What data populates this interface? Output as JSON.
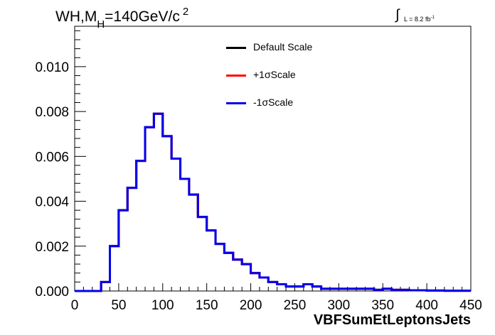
{
  "title": {
    "main": "WH,M",
    "sub": "H",
    "rest": "=140GeV/c",
    "sup": "2"
  },
  "lumi": {
    "integral": "∫",
    "text": "L = 8.2 fb",
    "sup": "-1"
  },
  "chart_data": {
    "type": "line",
    "xlabel": "VBFSumEtLeptonsJets",
    "ylabel": "",
    "xlim": [
      0,
      450
    ],
    "ylim": [
      0,
      0.0118
    ],
    "x_ticks": [
      "0",
      "50",
      "100",
      "150",
      "200",
      "250",
      "300",
      "350",
      "400",
      "450"
    ],
    "y_ticks": [
      "0.000",
      "0.002",
      "0.004",
      "0.006",
      "0.008",
      "0.010"
    ],
    "y_tick_values": [
      0,
      0.002,
      0.004,
      0.006,
      0.008,
      0.01
    ],
    "grid": false,
    "legend_position": "top-center",
    "bin_width": 10,
    "bin_edges_start": 0,
    "series": [
      {
        "name": "Default Scale",
        "color": "#000000",
        "values": [
          0,
          0,
          0,
          0.0004,
          0.002,
          0.0036,
          0.0046,
          0.0058,
          0.0073,
          0.0079,
          0.0069,
          0.0059,
          0.005,
          0.0043,
          0.0033,
          0.0027,
          0.0021,
          0.0017,
          0.0014,
          0.0012,
          0.0008,
          0.0006,
          0.0004,
          0.0003,
          0.0002,
          0.0002,
          0.0003,
          0.0002,
          0.0001,
          0.0001,
          0.0001,
          0.0001,
          0.0001,
          0.0001,
          5e-05,
          0.0001,
          5e-05,
          5e-05,
          3e-05,
          3e-05,
          2e-05,
          2e-05,
          1e-05,
          1e-05,
          1e-05
        ]
      },
      {
        "name": "+1σScale",
        "color": "#ff0000",
        "values": [
          0,
          0,
          0,
          0.0004,
          0.002,
          0.0036,
          0.0046,
          0.0058,
          0.0073,
          0.0079,
          0.0069,
          0.0059,
          0.005,
          0.0043,
          0.0033,
          0.0027,
          0.0021,
          0.0017,
          0.0014,
          0.0012,
          0.0008,
          0.0006,
          0.0004,
          0.0003,
          0.0002,
          0.0002,
          0.0003,
          0.0002,
          0.0001,
          0.0001,
          0.0001,
          0.0001,
          0.0001,
          0.0001,
          5e-05,
          0.0001,
          5e-05,
          5e-05,
          3e-05,
          3e-05,
          2e-05,
          2e-05,
          1e-05,
          1e-05,
          1e-05
        ]
      },
      {
        "name": "-1σScale",
        "color": "#0000ee",
        "values": [
          0,
          0,
          0,
          0.0004,
          0.002,
          0.0036,
          0.0046,
          0.0058,
          0.0073,
          0.0079,
          0.0069,
          0.0059,
          0.005,
          0.0043,
          0.0033,
          0.0027,
          0.0021,
          0.0017,
          0.0014,
          0.0012,
          0.0008,
          0.0006,
          0.0004,
          0.0003,
          0.0002,
          0.0002,
          0.0003,
          0.0002,
          0.0001,
          0.0001,
          0.0001,
          0.0001,
          0.0001,
          0.0001,
          5e-05,
          0.0001,
          5e-05,
          5e-05,
          3e-05,
          3e-05,
          2e-05,
          2e-05,
          1e-05,
          1e-05,
          1e-05
        ]
      }
    ]
  }
}
